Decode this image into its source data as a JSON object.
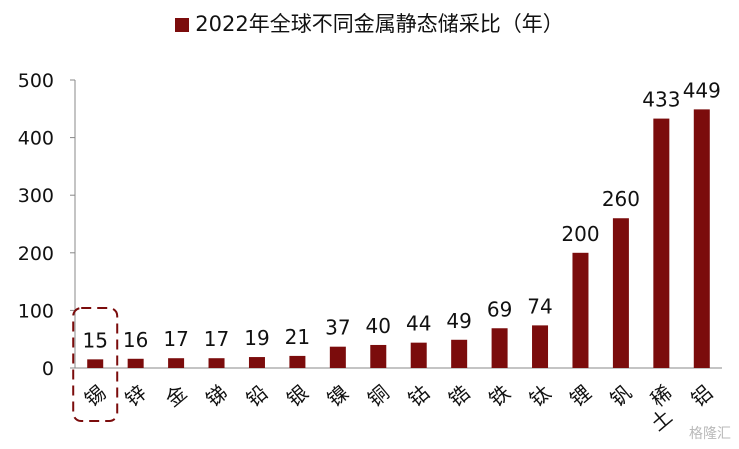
{
  "chart_data": {
    "type": "bar",
    "legend": "2022年全球不同金属静态储采比（年）",
    "series": [
      {
        "name": "2022年全球不同金属静态储采比（年）",
        "color": "#7b0c0c"
      }
    ],
    "categories": [
      "锡",
      "锌",
      "金",
      "锑",
      "铅",
      "银",
      "镍",
      "铜",
      "钴",
      "锆",
      "铁",
      "钛",
      "锂",
      "钒",
      "稀土",
      "铝"
    ],
    "values": [
      15,
      16,
      17,
      17,
      19,
      21,
      37,
      40,
      44,
      49,
      69,
      74,
      200,
      260,
      433,
      449
    ],
    "ylim": [
      0,
      500
    ],
    "yticks": [
      0,
      100,
      200,
      300,
      400,
      500
    ],
    "grid": false,
    "highlight_category": "锡",
    "highlight_color": "#7b0c0c"
  },
  "watermark": "格隆汇"
}
